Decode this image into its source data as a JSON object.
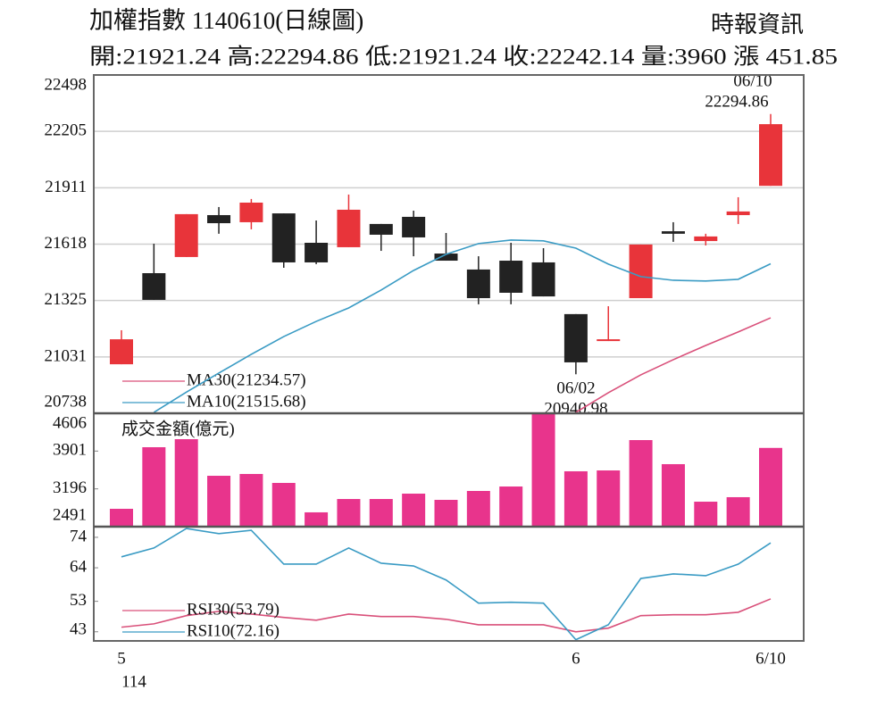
{
  "header": {
    "title": "加權指數 1140610(日線圖)",
    "source": "時報資訊",
    "quote": "開:21921.24 高:22294.86 低:21921.24 收:22242.14 量:3960 漲 451.85"
  },
  "chart_data": [
    {
      "type": "candlestick",
      "open": [
        20993,
        21467,
        21551,
        21769,
        21732,
        21778,
        21625,
        21602,
        21723,
        21760,
        21569,
        21486,
        21532,
        21523,
        21254,
        21114,
        21337,
        21685,
        21634,
        21769,
        21921.24
      ],
      "high": [
        21170,
        21620,
        21774,
        21811,
        21853,
        21778,
        21741,
        21876,
        21723,
        21792,
        21676,
        21555,
        21625,
        21597,
        21254,
        21295,
        21616,
        21732,
        21672,
        21862,
        22294.86
      ],
      "low": [
        20993,
        21328,
        21551,
        21672,
        21695,
        21495,
        21514,
        21602,
        21583,
        21555,
        21532,
        21305,
        21305,
        21346,
        20940.98,
        21114,
        21337,
        21630,
        21611,
        21723,
        21921.24
      ],
      "close": [
        21123,
        21328,
        21774,
        21727,
        21834,
        21523,
        21523,
        21797,
        21667,
        21653,
        21532,
        21337,
        21365,
        21346,
        21003,
        21123,
        21616,
        21672,
        21658,
        21788,
        22242.14
      ],
      "up_color": "#e8343a",
      "down_color": "#222222",
      "series": [
        {
          "name": "MA30(21234.57)",
          "color": "#d9507a",
          "values": [
            null,
            null,
            null,
            null,
            null,
            null,
            null,
            null,
            null,
            null,
            null,
            null,
            null,
            null,
            20743,
            20845,
            20938,
            21017,
            21091,
            21161,
            21234.57
          ]
        },
        {
          "name": "MA10(21515.68)",
          "color": "#3a9bc4",
          "values": [
            null,
            20743,
            20848,
            20947,
            21045,
            21137,
            21216,
            21286,
            21379,
            21481,
            21565,
            21621,
            21639,
            21635,
            21597,
            21514,
            21449,
            21430,
            21426,
            21435,
            21515.68
          ]
        }
      ],
      "annotations": [
        {
          "date": "06/10",
          "text": "22294.86"
        },
        {
          "date": "06/02",
          "text": "20940.98"
        }
      ],
      "ylim": [
        20738,
        22498
      ],
      "yticks": [
        20738,
        21031,
        21325,
        21618,
        21911,
        22205,
        22498
      ],
      "grid": true
    },
    {
      "type": "bar",
      "title": "成交金額(億元)",
      "color": "#e8348c",
      "values": [
        2824,
        3973,
        4123,
        3440,
        3474,
        3307,
        2758,
        3007,
        3007,
        3107,
        2991,
        3157,
        3240,
        4606,
        3524,
        3540,
        4106,
        3657,
        2957,
        3041,
        3960
      ],
      "ylim": [
        2491,
        4606
      ],
      "yticks": [
        2491,
        3196,
        3901,
        4606
      ]
    },
    {
      "type": "line",
      "categories": [
        "5",
        null,
        null,
        null,
        null,
        null,
        null,
        null,
        null,
        null,
        null,
        null,
        null,
        null,
        "6",
        null,
        null,
        null,
        null,
        null,
        "6/10"
      ],
      "x_sublabel": "114",
      "series": [
        {
          "name": "RSI30(53.79)",
          "color": "#d9507a",
          "values": [
            44.5,
            45.6,
            48.3,
            49.7,
            48.8,
            47.7,
            46.8,
            48.8,
            48,
            48,
            47.1,
            45.3,
            45.3,
            45.3,
            43,
            44.2,
            48.3,
            48.6,
            48.6,
            49.4,
            53.79
          ]
        },
        {
          "name": "RSI10(72.16)",
          "color": "#3a9bc4",
          "values": [
            67.6,
            70.5,
            76.9,
            75.2,
            76.3,
            65.2,
            65.2,
            70.5,
            65.5,
            64.6,
            60,
            52.4,
            52.7,
            52.4,
            40.4,
            45.3,
            60.5,
            62,
            61.4,
            65.2,
            72.16
          ]
        }
      ],
      "ylim": [
        40,
        77.5
      ],
      "yticks": [
        43,
        53,
        64,
        74
      ]
    }
  ]
}
